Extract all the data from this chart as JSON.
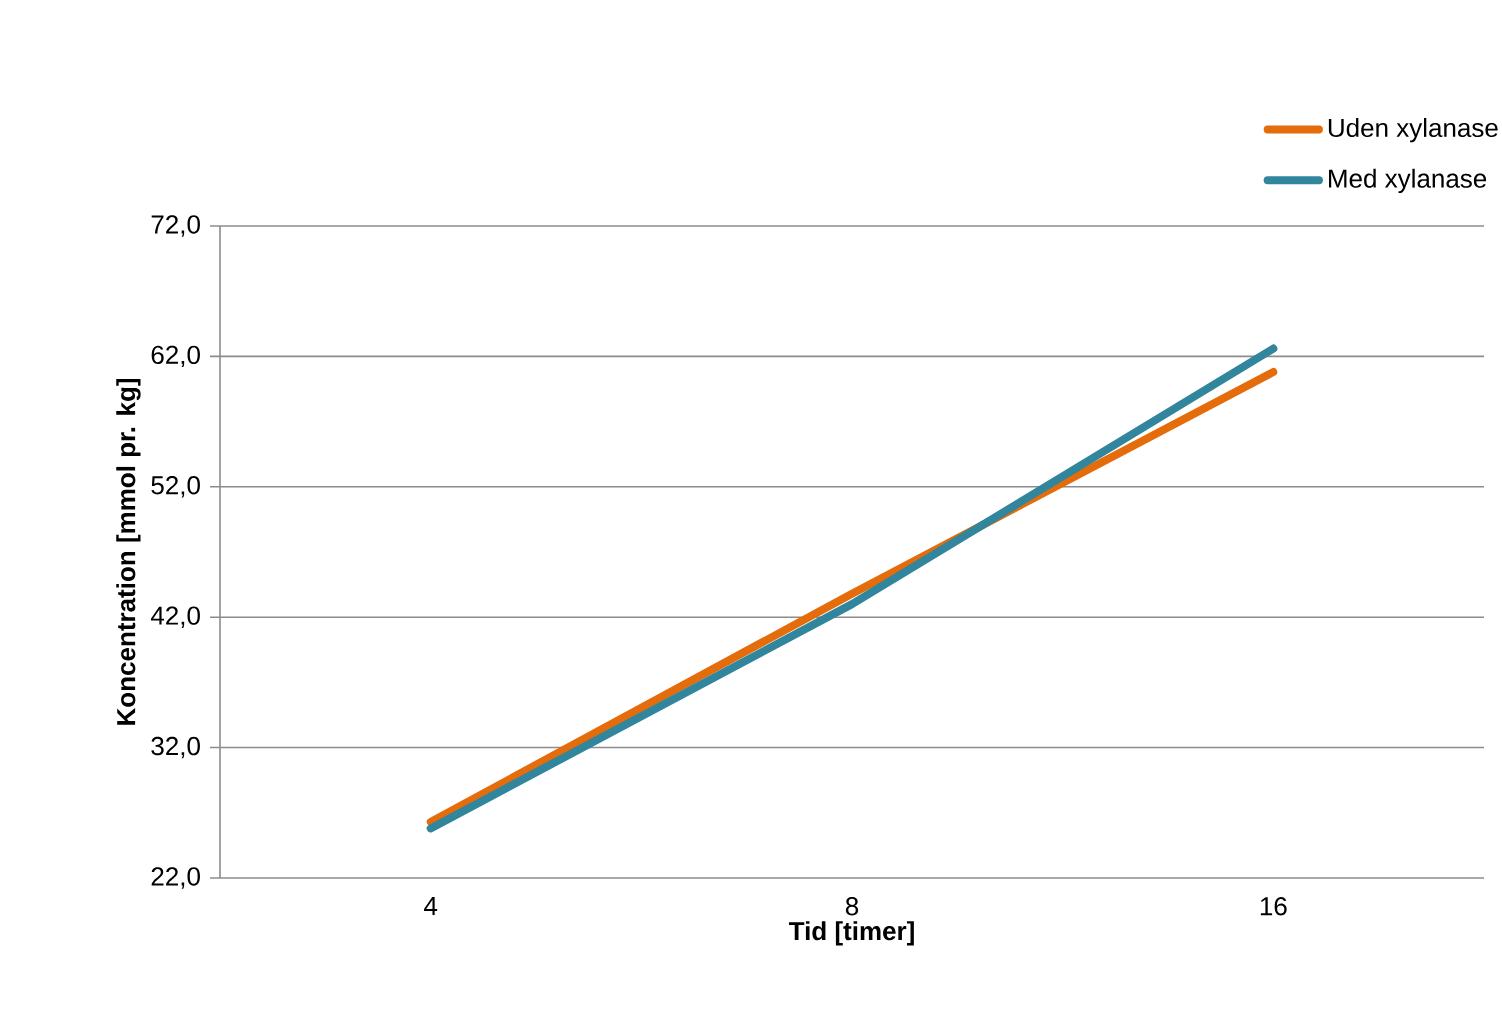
{
  "chart_data": {
    "type": "line",
    "xlabel": "Tid [timer]",
    "ylabel": "Koncentration [mmol pr. kg]",
    "categories": [
      "4",
      "8",
      "16"
    ],
    "series": [
      {
        "name": "Uden xylanase",
        "color": "#e46c0a",
        "values": [
          26.3,
          43.8,
          60.8
        ]
      },
      {
        "name": "Med xylanase",
        "color": "#31859c",
        "values": [
          25.8,
          43.0,
          62.6
        ]
      }
    ],
    "ylim": [
      22,
      72
    ],
    "yticks": [
      {
        "value": 22,
        "label": "22,0"
      },
      {
        "value": 32,
        "label": "32,0"
      },
      {
        "value": 42,
        "label": "42,0"
      },
      {
        "value": 52,
        "label": "52,0"
      },
      {
        "value": 62,
        "label": "62,0"
      },
      {
        "value": 72,
        "label": "72,0"
      }
    ],
    "grid": "y",
    "legend": "top right",
    "marker": "none",
    "line_style": "solid"
  }
}
